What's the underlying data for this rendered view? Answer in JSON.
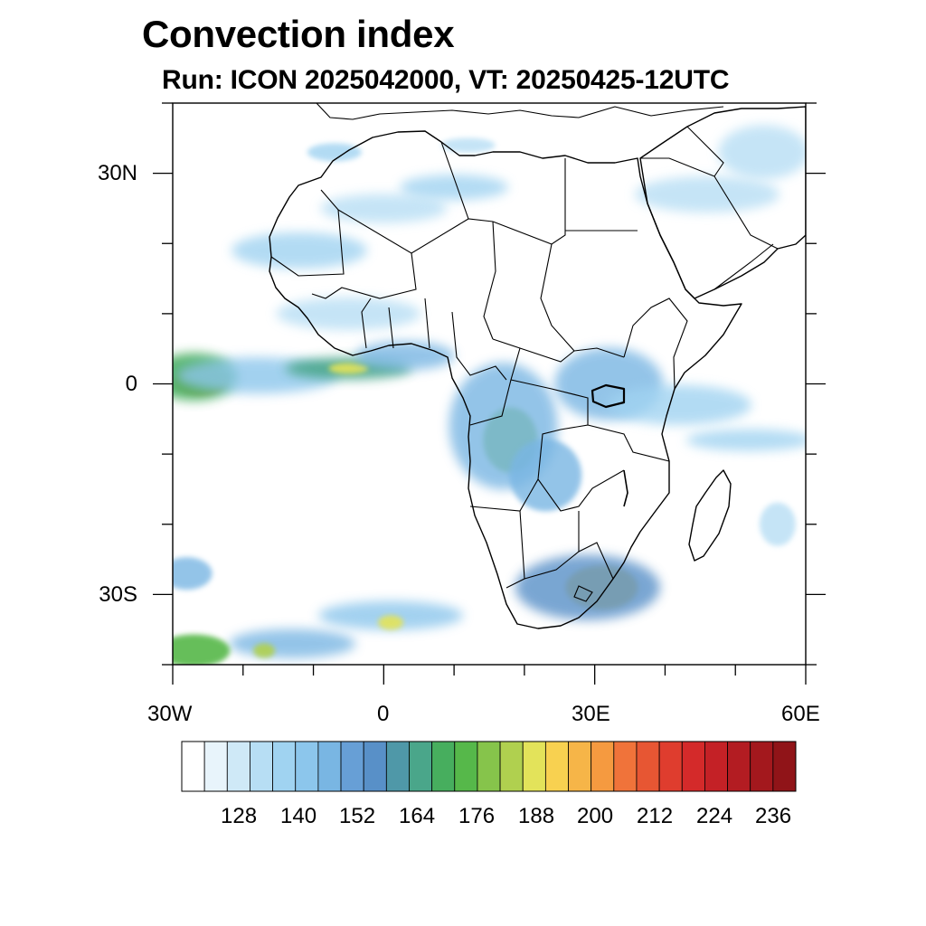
{
  "title": "Convection index",
  "subtitle": "Run: ICON 2025042000,  VT: 20250425-12UTC",
  "map": {
    "lat_labels": [
      "30N",
      "0",
      "30S"
    ],
    "lon_labels": [
      "30W",
      "0",
      "30E",
      "60E"
    ],
    "extent": {
      "lon_min": -30,
      "lon_max": 60,
      "lat_min": -40,
      "lat_max": 40
    },
    "land_color": "#ffffff",
    "coastline_color": "#000000"
  },
  "colorbar": {
    "labels": [
      "128",
      "140",
      "152",
      "164",
      "176",
      "188",
      "200",
      "212",
      "224",
      "236"
    ],
    "colors": [
      "#ffffff",
      "#e8f4fb",
      "#cfe9f7",
      "#b7def4",
      "#a0d3f1",
      "#8cc6ec",
      "#79b6e3",
      "#679fd6",
      "#5890c8",
      "#4f98a8",
      "#4aa68a",
      "#47ae5e",
      "#56b84a",
      "#86c44b",
      "#b0d04f",
      "#e3e35a",
      "#f8d150",
      "#f6b548",
      "#f59a40",
      "#f0733a",
      "#e75633",
      "#df3d2e",
      "#d42a2a",
      "#c42126",
      "#b31c22",
      "#a3181d",
      "#901418"
    ]
  },
  "convection_cells": [
    {
      "name": "atlantic-itcz-core",
      "lon": -26,
      "lat": 0.5,
      "rx": 30,
      "ry": 16,
      "level": 18
    },
    {
      "name": "atlantic-itcz-west",
      "lon": -27,
      "lat": 1,
      "rx": 48,
      "ry": 26,
      "level": 11
    },
    {
      "name": "atlantic-itcz-band",
      "lon": -18,
      "lat": 1.2,
      "rx": 90,
      "ry": 20,
      "level": 5
    },
    {
      "name": "gulf-guinea-band",
      "lon": -5,
      "lat": 2.2,
      "rx": 70,
      "ry": 12,
      "level": 10
    },
    {
      "name": "gulf-guinea-core",
      "lon": -5,
      "lat": 2.2,
      "rx": 22,
      "ry": 6,
      "level": 15
    },
    {
      "name": "west-africa-coast",
      "lon": 3,
      "lat": 4,
      "rx": 55,
      "ry": 16,
      "level": 6
    },
    {
      "name": "sahel-west",
      "lon": -12,
      "lat": 19,
      "rx": 75,
      "ry": 20,
      "level": 4
    },
    {
      "name": "sahara-band-1",
      "lon": 0,
      "lat": 25,
      "rx": 70,
      "ry": 16,
      "level": 3
    },
    {
      "name": "sahara-band-2",
      "lon": 10,
      "lat": 28,
      "rx": 60,
      "ry": 14,
      "level": 4
    },
    {
      "name": "morocco-cell",
      "lon": -7,
      "lat": 33,
      "rx": 30,
      "ry": 10,
      "level": 4
    },
    {
      "name": "libya-cell",
      "lon": 12,
      "lat": 34,
      "rx": 30,
      "ry": 8,
      "level": 3
    },
    {
      "name": "west-africa-inland",
      "lon": -5,
      "lat": 10,
      "rx": 80,
      "ry": 18,
      "level": 3
    },
    {
      "name": "arabia-north",
      "lon": 46,
      "lat": 27,
      "rx": 80,
      "ry": 20,
      "level": 3
    },
    {
      "name": "arabia-east",
      "lon": 54,
      "lat": 33,
      "rx": 50,
      "ry": 30,
      "level": 3
    },
    {
      "name": "congo-core",
      "lon": 18,
      "lat": -8,
      "rx": 30,
      "ry": 36,
      "level": 13
    },
    {
      "name": "congo-basin",
      "lon": 17,
      "lat": -6,
      "rx": 60,
      "ry": 70,
      "level": 6
    },
    {
      "name": "east-africa-lakes",
      "lon": 32,
      "lat": 0,
      "rx": 60,
      "ry": 40,
      "level": 6
    },
    {
      "name": "kenya-coast",
      "lon": 42,
      "lat": -3,
      "rx": 80,
      "ry": 22,
      "level": 4
    },
    {
      "name": "zambia-cell",
      "lon": 23,
      "lat": -13,
      "rx": 40,
      "ry": 40,
      "level": 6
    },
    {
      "name": "south-africa-core",
      "lon": 31,
      "lat": -29,
      "rx": 40,
      "ry": 24,
      "level": 16
    },
    {
      "name": "south-africa-band",
      "lon": 29,
      "lat": -29,
      "rx": 80,
      "ry": 36,
      "level": 8
    },
    {
      "name": "south-atlantic-band-1",
      "lon": 1,
      "lat": -33,
      "rx": 80,
      "ry": 16,
      "level": 5
    },
    {
      "name": "south-atlantic-core-1",
      "lon": 1,
      "lat": -34,
      "rx": 14,
      "ry": 8,
      "level": 15
    },
    {
      "name": "south-atlantic-band-2",
      "lon": -13,
      "lat": -37,
      "rx": 70,
      "ry": 16,
      "level": 6
    },
    {
      "name": "south-atlantic-core-2",
      "lon": -17,
      "lat": -38,
      "rx": 12,
      "ry": 8,
      "level": 14
    },
    {
      "name": "south-atlantic-west",
      "lon": -27,
      "lat": -38,
      "rx": 40,
      "ry": 18,
      "level": 12
    },
    {
      "name": "south-atlantic-sw",
      "lon": -28,
      "lat": -27,
      "rx": 28,
      "ry": 18,
      "level": 6
    },
    {
      "name": "indian-ocean-band",
      "lon": 52,
      "lat": -8,
      "rx": 70,
      "ry": 12,
      "level": 4
    },
    {
      "name": "madagascar-east",
      "lon": 56,
      "lat": -20,
      "rx": 20,
      "ry": 24,
      "level": 3
    }
  ]
}
